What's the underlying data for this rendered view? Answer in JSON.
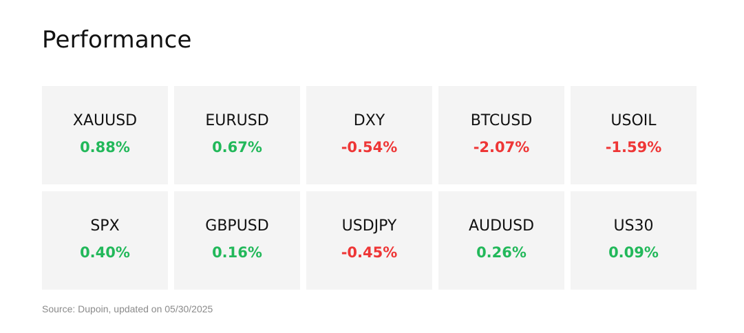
{
  "title": "Performance",
  "colors": {
    "positive": "#22b85a",
    "negative": "#ee3636",
    "tile_bg": "#f4f4f4"
  },
  "instruments": [
    {
      "symbol": "XAUUSD",
      "change": "0.88%",
      "direction": "up"
    },
    {
      "symbol": "EURUSD",
      "change": "0.67%",
      "direction": "up"
    },
    {
      "symbol": "DXY",
      "change": "-0.54%",
      "direction": "down"
    },
    {
      "symbol": "BTCUSD",
      "change": "-2.07%",
      "direction": "down"
    },
    {
      "symbol": "USOIL",
      "change": "-1.59%",
      "direction": "down"
    },
    {
      "symbol": "SPX",
      "change": "0.40%",
      "direction": "up"
    },
    {
      "symbol": "GBPUSD",
      "change": "0.16%",
      "direction": "up"
    },
    {
      "symbol": "USDJPY",
      "change": "-0.45%",
      "direction": "down"
    },
    {
      "symbol": "AUDUSD",
      "change": "0.26%",
      "direction": "up"
    },
    {
      "symbol": "US30",
      "change": "0.09%",
      "direction": "up"
    }
  ],
  "source": "Source: Dupoin, updated on 05/30/2025"
}
